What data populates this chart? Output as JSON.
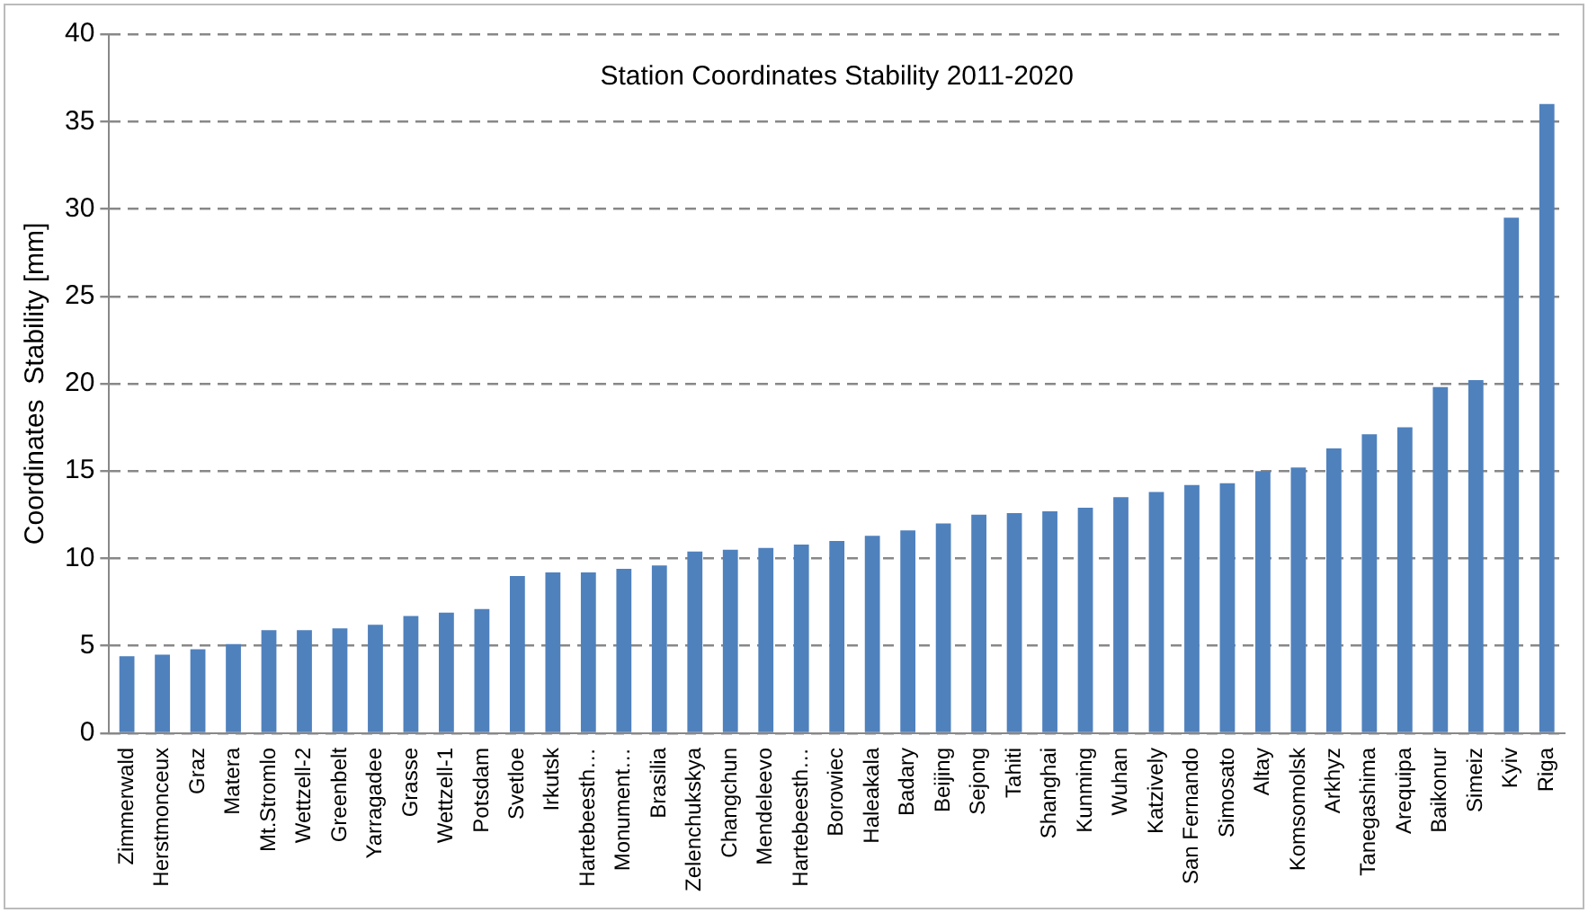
{
  "chart_data": {
    "type": "bar",
    "title": "Station Coordinates Stability 2011-2020",
    "ylabel": "Coordinates  Stability [mm]",
    "categories": [
      "Zimmerwald",
      "Herstmonceux",
      "Graz",
      "Matera",
      "Mt.Stromlo",
      "Wettzell-2",
      "Greenbelt",
      "Yarragadee",
      "Grasse",
      "Wettzell-1",
      "Potsdam",
      "Svetloe",
      "Irkutsk",
      "Hartebeesth…",
      "Monument…",
      "Brasilia",
      "Zelenchukskya",
      "Changchun",
      "Mendeleevo",
      "Hartebeesth…",
      "Borowiec",
      "Haleakala",
      "Badary",
      "Beijing",
      "Sejong",
      "Tahiti",
      "Shanghai",
      "Kunming",
      "Wuhan",
      "Katzively",
      "San Fernando",
      "Simosato",
      "Altay",
      "Komsomolsk",
      "Arkhyz",
      "Tanegashima",
      "Arequipa",
      "Baikonur",
      "Simeiz",
      "Kyiv",
      "Riga"
    ],
    "values": [
      4.4,
      4.5,
      4.8,
      5.1,
      5.9,
      5.9,
      6.0,
      6.2,
      6.7,
      6.9,
      7.1,
      9.0,
      9.2,
      9.2,
      9.4,
      9.6,
      10.4,
      10.5,
      10.6,
      10.8,
      11.0,
      11.3,
      11.6,
      12.0,
      12.5,
      12.6,
      12.7,
      12.9,
      13.5,
      13.8,
      14.2,
      14.3,
      15.0,
      15.2,
      16.3,
      17.1,
      17.5,
      19.8,
      20.2,
      29.5,
      36.0
    ],
    "color": "#4f81bd",
    "ylim": [
      0,
      40
    ],
    "yticks": [
      0,
      5,
      10,
      15,
      20,
      25,
      30,
      35,
      40
    ],
    "grid": "y",
    "line_style": "dashed"
  }
}
